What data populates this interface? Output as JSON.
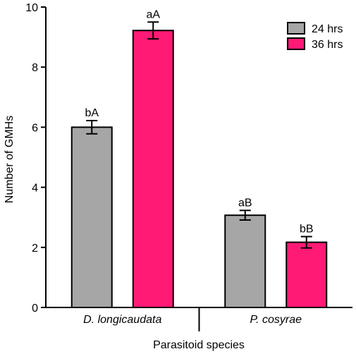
{
  "chart_data": {
    "type": "bar",
    "xlabel": "Parasitoid species",
    "ylabel": "Number of GMHs",
    "ylim": [
      0,
      10
    ],
    "yticks": [
      0,
      2,
      4,
      6,
      8,
      10
    ],
    "grid": false,
    "legend_position": "top-right",
    "categories": [
      "D. longicaudata",
      "P. cosyrae"
    ],
    "series": [
      {
        "name": "24 hrs",
        "color": "#a6a6a6",
        "values": [
          6.0,
          3.07
        ],
        "errors": [
          0.22,
          0.16
        ],
        "labels": [
          "bA",
          "aB"
        ]
      },
      {
        "name": "36 hrs",
        "color": "#ff1a75",
        "values": [
          9.22,
          2.17
        ],
        "errors": [
          0.28,
          0.19
        ],
        "labels": [
          "aA",
          "bB"
        ]
      }
    ]
  }
}
